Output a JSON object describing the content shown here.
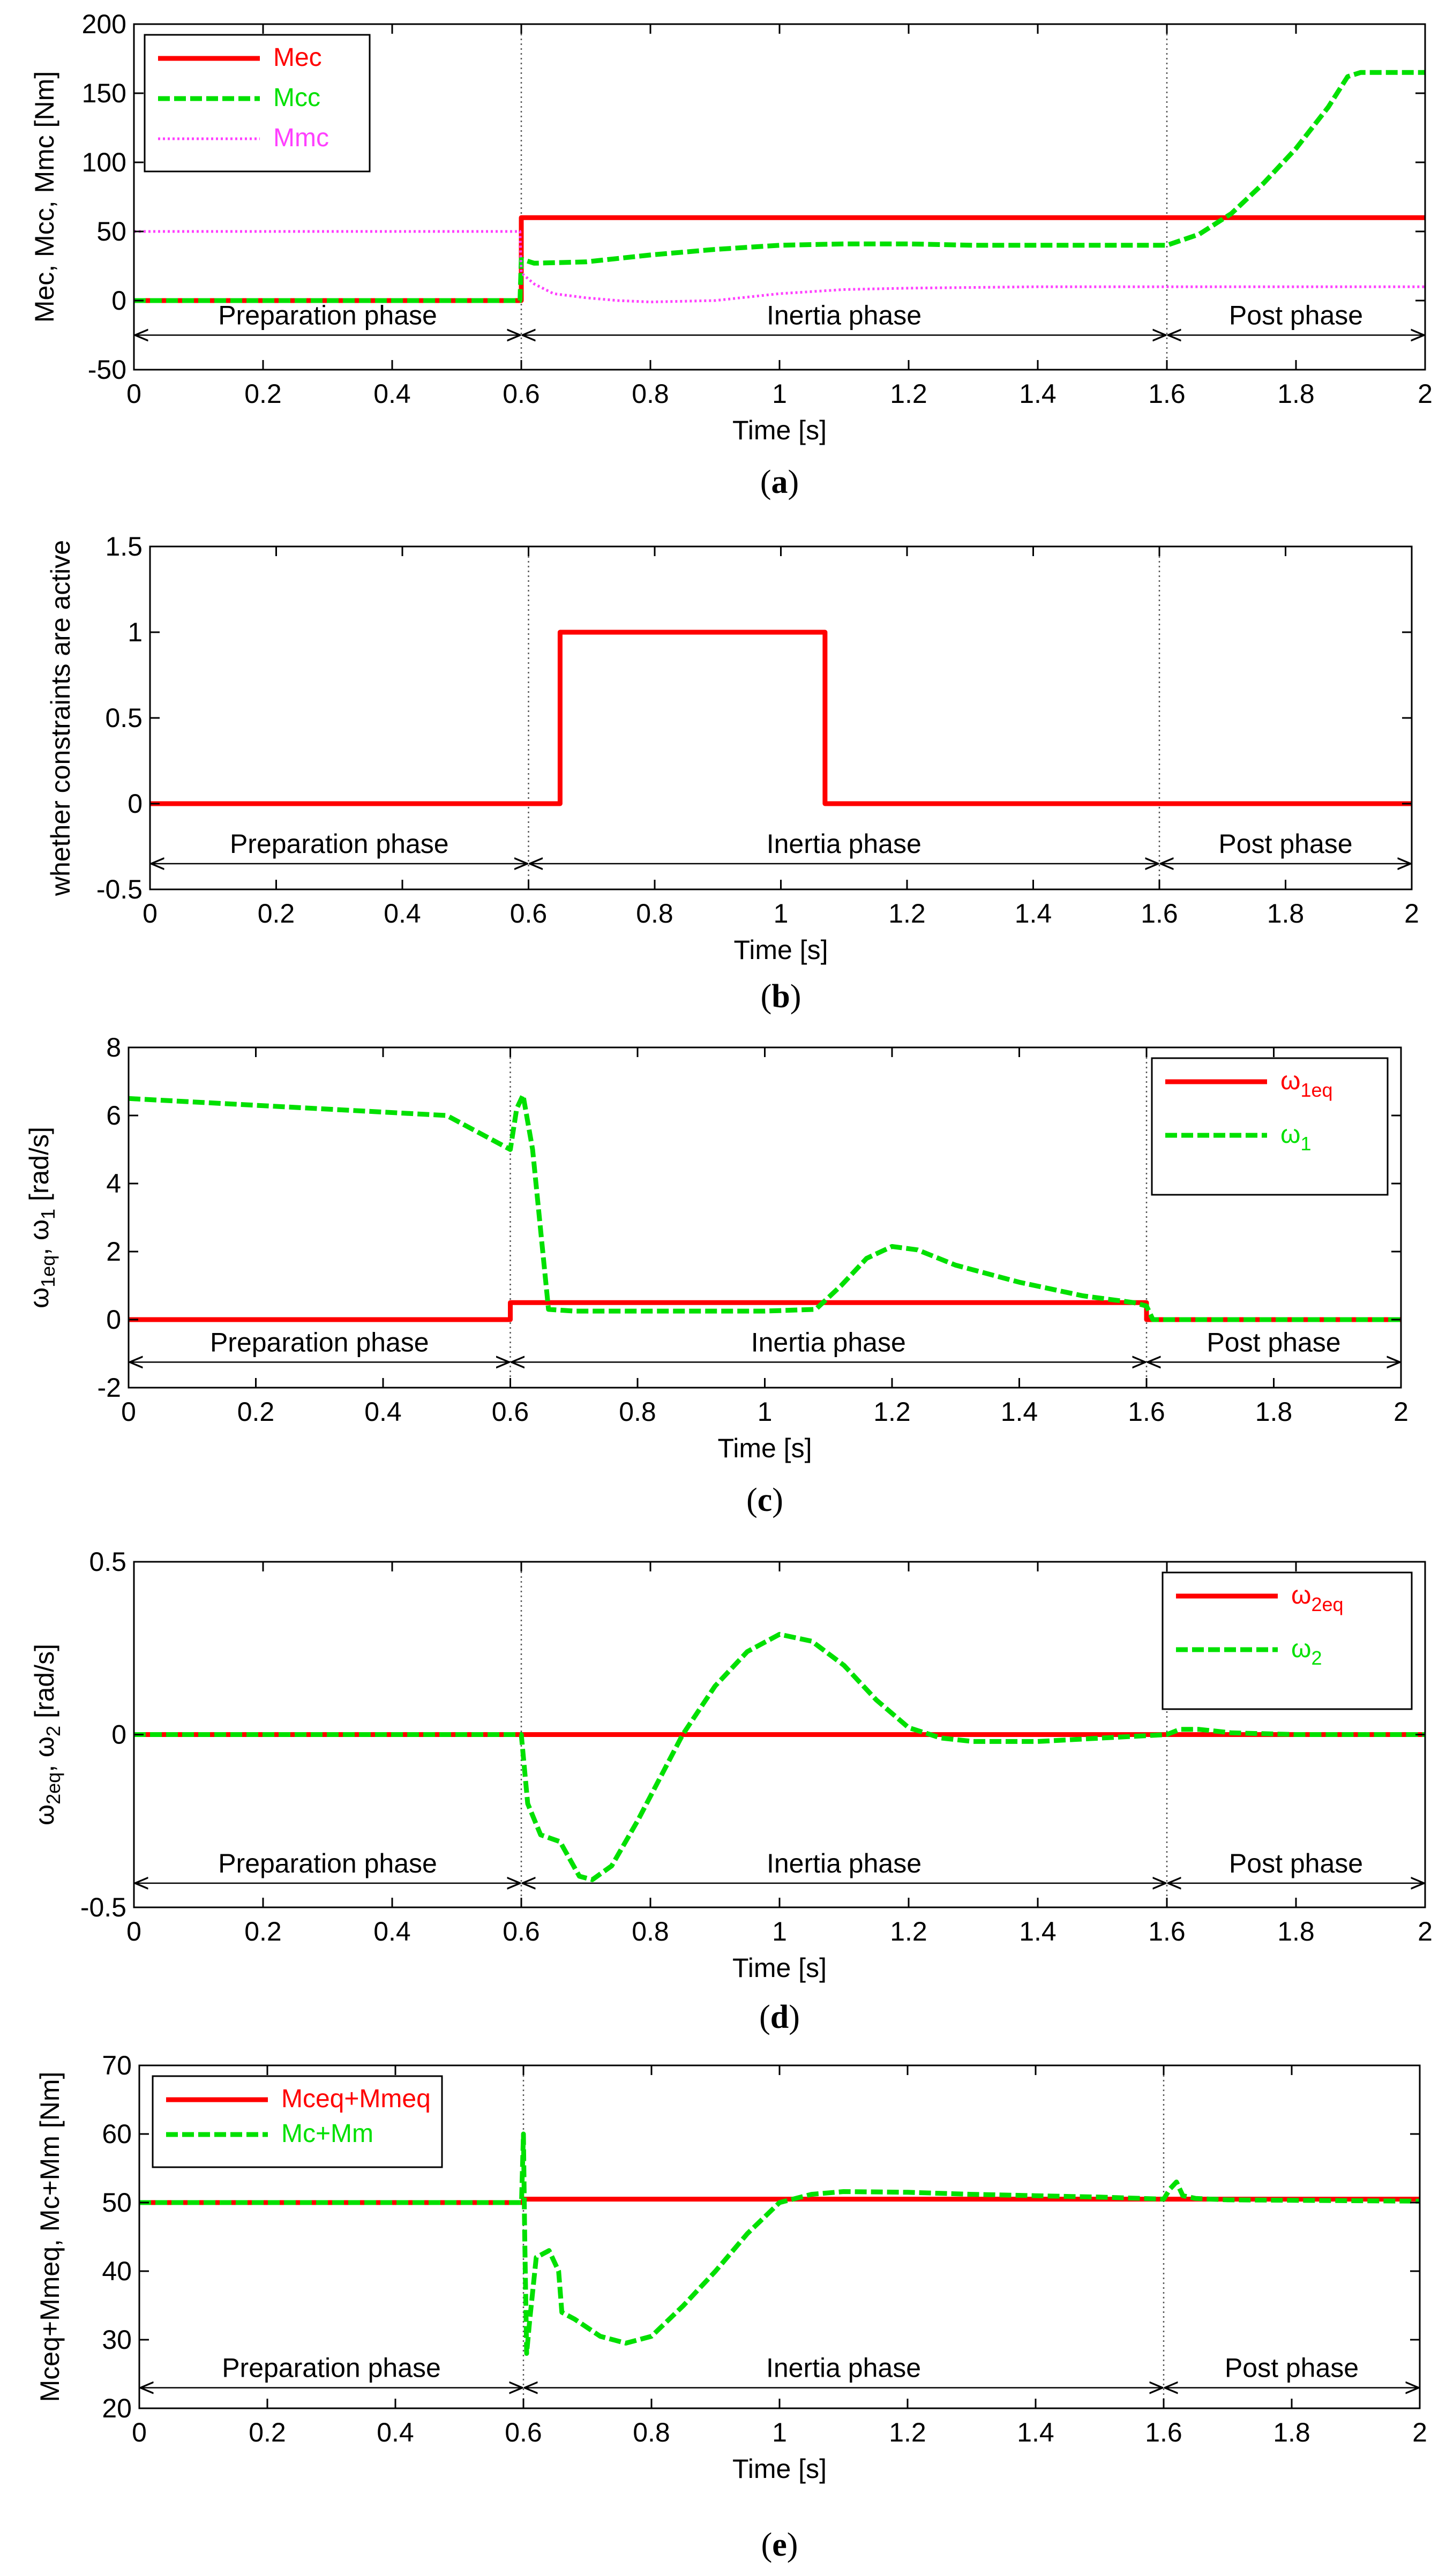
{
  "colors": {
    "red": "#ff0000",
    "green": "#00e000",
    "magenta": "#ff40ff",
    "axis": "#000000",
    "divider": "#555555"
  },
  "chart_data": [
    {
      "id": "a",
      "type": "line",
      "caption": "a",
      "xlabel": "Time [s]",
      "ylabel": "Mec, Mcc, Mmc [Nm]",
      "xlim": [
        0,
        2
      ],
      "ylim": [
        -50,
        200
      ],
      "xticks": [
        0,
        0.2,
        0.4,
        0.6,
        0.8,
        1,
        1.2,
        1.4,
        1.6,
        1.8,
        2
      ],
      "xtick_labels": [
        "0",
        "0.2",
        "0.4",
        "0.6",
        "0.8",
        "1",
        "1.2",
        "1.4",
        "1.6",
        "1.8",
        "2"
      ],
      "yticks": [
        -50,
        0,
        50,
        100,
        150,
        200
      ],
      "ytick_labels": [
        "-50",
        "0",
        "50",
        "100",
        "150",
        "200"
      ],
      "phase_y": -25,
      "phases": [
        {
          "label": "Preparation phase",
          "from": 0,
          "to": 0.6
        },
        {
          "label": "Inertia phase",
          "from": 0.6,
          "to": 1.6
        },
        {
          "label": "Post phase",
          "from": 1.6,
          "to": 2
        }
      ],
      "legend": {
        "position": "top-left"
      },
      "series": [
        {
          "name": "Mec",
          "legend_label": "Mec",
          "color": "red",
          "style": "solid",
          "x": [
            0,
            0.6,
            0.6,
            2
          ],
          "y": [
            0,
            0,
            60,
            60
          ]
        },
        {
          "name": "Mcc",
          "legend_label": "Mcc",
          "color": "green",
          "style": "dashed",
          "x": [
            0,
            0.598,
            0.6,
            0.62,
            0.7,
            0.8,
            0.9,
            1.0,
            1.1,
            1.2,
            1.3,
            1.4,
            1.5,
            1.6,
            1.65,
            1.7,
            1.75,
            1.8,
            1.85,
            1.88,
            1.9,
            2.0
          ],
          "y": [
            0,
            0,
            30,
            27,
            28,
            33,
            37,
            40,
            41,
            41,
            40,
            40,
            40,
            40,
            48,
            63,
            85,
            110,
            140,
            162,
            165,
            165
          ]
        },
        {
          "name": "Mmc",
          "legend_label": "Mmc",
          "color": "magenta",
          "style": "dotted",
          "x": [
            0,
            0.598,
            0.6,
            0.62,
            0.65,
            0.7,
            0.75,
            0.8,
            0.9,
            1.0,
            1.1,
            1.2,
            1.4,
            1.6,
            2.0
          ],
          "y": [
            50,
            50,
            20,
            12,
            5,
            2,
            0,
            -1,
            0,
            5,
            8,
            9,
            10,
            10,
            10
          ]
        }
      ]
    },
    {
      "id": "b",
      "type": "line",
      "caption": "b",
      "xlabel": "Time [s]",
      "ylabel": "whether constraints are active",
      "xlim": [
        0,
        2
      ],
      "ylim": [
        -0.5,
        1.5
      ],
      "xticks": [
        0,
        0.2,
        0.4,
        0.6,
        0.8,
        1,
        1.2,
        1.4,
        1.6,
        1.8,
        2
      ],
      "xtick_labels": [
        "0",
        "0.2",
        "0.4",
        "0.6",
        "0.8",
        "1",
        "1.2",
        "1.4",
        "1.6",
        "1.8",
        "2"
      ],
      "yticks": [
        -0.5,
        0,
        0.5,
        1,
        1.5
      ],
      "ytick_labels": [
        "-0.5",
        "0",
        "0.5",
        "1",
        "1.5"
      ],
      "phase_y": -0.35,
      "phases": [
        {
          "label": "Preparation phase",
          "from": 0,
          "to": 0.6
        },
        {
          "label": "Inertia phase",
          "from": 0.6,
          "to": 1.6
        },
        {
          "label": "Post phase",
          "from": 1.6,
          "to": 2
        }
      ],
      "legend": null,
      "series": [
        {
          "name": "active",
          "color": "red",
          "style": "solid",
          "x": [
            0,
            0.65,
            0.65,
            1.07,
            1.07,
            2
          ],
          "y": [
            0,
            0,
            1,
            1,
            0,
            0
          ]
        }
      ]
    },
    {
      "id": "c",
      "type": "line",
      "caption": "c",
      "xlabel": "Time [s]",
      "ylabel": "ω1eq, ω1 [rad/s]",
      "xlim": [
        0,
        2
      ],
      "ylim": [
        -2,
        8
      ],
      "xticks": [
        0,
        0.2,
        0.4,
        0.6,
        0.8,
        1,
        1.2,
        1.4,
        1.6,
        1.8,
        2
      ],
      "xtick_labels": [
        "0",
        "0.2",
        "0.4",
        "0.6",
        "0.8",
        "1",
        "1.2",
        "1.4",
        "1.6",
        "1.8",
        "2"
      ],
      "yticks": [
        -2,
        0,
        2,
        4,
        6,
        8
      ],
      "ytick_labels": [
        "-2",
        "0",
        "2",
        "4",
        "6",
        "8"
      ],
      "phase_y": -1.25,
      "phases": [
        {
          "label": "Preparation phase",
          "from": 0,
          "to": 0.6
        },
        {
          "label": "Inertia phase",
          "from": 0.6,
          "to": 1.6
        },
        {
          "label": "Post phase",
          "from": 1.6,
          "to": 2
        }
      ],
      "legend": {
        "position": "top-right"
      },
      "series": [
        {
          "name": "ω1eq",
          "legend_base": "ω",
          "legend_sub": "1eq",
          "color": "red",
          "style": "solid",
          "x": [
            0,
            0.6,
            0.6,
            1.6,
            1.6,
            2
          ],
          "y": [
            0,
            0,
            0.5,
            0.5,
            0,
            0
          ]
        },
        {
          "name": "ω1",
          "legend_base": "ω",
          "legend_sub": "1",
          "color": "green",
          "style": "dashed",
          "x": [
            0,
            0.5,
            0.6,
            0.61,
            0.62,
            0.635,
            0.66,
            0.7,
            0.8,
            0.9,
            1.0,
            1.08,
            1.12,
            1.16,
            1.2,
            1.24,
            1.3,
            1.4,
            1.5,
            1.58,
            1.6,
            1.61,
            1.65,
            2.0
          ],
          "y": [
            6.5,
            6.0,
            5.0,
            6.2,
            6.6,
            5.0,
            0.3,
            0.25,
            0.25,
            0.25,
            0.25,
            0.3,
            1.0,
            1.8,
            2.15,
            2.05,
            1.6,
            1.1,
            0.7,
            0.5,
            0.4,
            0.0,
            0.0,
            0.0
          ]
        }
      ]
    },
    {
      "id": "d",
      "type": "line",
      "caption": "d",
      "xlabel": "Time [s]",
      "ylabel": "ω2eq, ω2 [rad/s]",
      "xlim": [
        0,
        2
      ],
      "ylim": [
        -0.5,
        0.5
      ],
      "xticks": [
        0,
        0.2,
        0.4,
        0.6,
        0.8,
        1,
        1.2,
        1.4,
        1.6,
        1.8,
        2
      ],
      "xtick_labels": [
        "0",
        "0.2",
        "0.4",
        "0.6",
        "0.8",
        "1",
        "1.2",
        "1.4",
        "1.6",
        "1.8",
        "2"
      ],
      "yticks": [
        -0.5,
        0,
        0.5
      ],
      "ytick_labels": [
        "-0.5",
        "0",
        "0.5"
      ],
      "phase_y": -0.43,
      "phases": [
        {
          "label": "Preparation phase",
          "from": 0,
          "to": 0.6
        },
        {
          "label": "Inertia phase",
          "from": 0.6,
          "to": 1.6
        },
        {
          "label": "Post phase",
          "from": 1.6,
          "to": 2
        }
      ],
      "legend": {
        "position": "top-right"
      },
      "series": [
        {
          "name": "ω2eq",
          "legend_base": "ω",
          "legend_sub": "2eq",
          "color": "red",
          "style": "solid",
          "x": [
            0,
            2
          ],
          "y": [
            0,
            0
          ]
        },
        {
          "name": "ω2",
          "legend_base": "ω",
          "legend_sub": "2",
          "color": "green",
          "style": "dashed",
          "x": [
            0,
            0.6,
            0.61,
            0.63,
            0.66,
            0.69,
            0.71,
            0.74,
            0.78,
            0.85,
            0.9,
            0.95,
            1.0,
            1.05,
            1.1,
            1.15,
            1.2,
            1.25,
            1.3,
            1.4,
            1.5,
            1.6,
            1.62,
            1.65,
            1.7,
            1.8,
            2.0
          ],
          "y": [
            0,
            0,
            -0.2,
            -0.29,
            -0.31,
            -0.41,
            -0.42,
            -0.38,
            -0.25,
            0.0,
            0.14,
            0.24,
            0.29,
            0.27,
            0.2,
            0.1,
            0.02,
            -0.01,
            -0.02,
            -0.02,
            -0.01,
            0.0,
            0.015,
            0.015,
            0.005,
            0.0,
            0.0
          ]
        }
      ]
    },
    {
      "id": "e",
      "type": "line",
      "caption": "e",
      "xlabel": "Time [s]",
      "ylabel": "Mceq+Mmeq, Mc+Mm [Nm]",
      "xlim": [
        0,
        2
      ],
      "ylim": [
        20,
        70
      ],
      "xticks": [
        0,
        0.2,
        0.4,
        0.6,
        0.8,
        1,
        1.2,
        1.4,
        1.6,
        1.8,
        2
      ],
      "xtick_labels": [
        "0",
        "0.2",
        "0.4",
        "0.6",
        "0.8",
        "1",
        "1.2",
        "1.4",
        "1.6",
        "1.8",
        "2"
      ],
      "yticks": [
        20,
        30,
        40,
        50,
        60,
        70
      ],
      "ytick_labels": [
        "20",
        "30",
        "40",
        "50",
        "60",
        "70"
      ],
      "phase_y": 23,
      "phases": [
        {
          "label": "Preparation phase",
          "from": 0,
          "to": 0.6
        },
        {
          "label": "Inertia phase",
          "from": 0.6,
          "to": 1.6
        },
        {
          "label": "Post phase",
          "from": 1.6,
          "to": 2
        }
      ],
      "legend": {
        "position": "top-left"
      },
      "series": [
        {
          "name": "Mceq+Mmeq",
          "legend_label": "Mceq+Mmeq",
          "color": "red",
          "style": "solid",
          "x": [
            0,
            0.6,
            0.6,
            2
          ],
          "y": [
            50,
            50,
            50.5,
            50.5
          ]
        },
        {
          "name": "Mc+Mm",
          "legend_label": "Mc+Mm",
          "color": "green",
          "style": "dashed",
          "x": [
            0,
            0.597,
            0.6,
            0.602,
            0.605,
            0.61,
            0.62,
            0.64,
            0.655,
            0.66,
            0.68,
            0.72,
            0.76,
            0.8,
            0.85,
            0.9,
            0.95,
            1.0,
            1.05,
            1.1,
            1.2,
            1.3,
            1.4,
            1.5,
            1.6,
            1.61,
            1.62,
            1.63,
            1.65,
            1.7,
            2.0
          ],
          "y": [
            50,
            50,
            60,
            45,
            28,
            33,
            42,
            43,
            40,
            34,
            33,
            30.5,
            29.5,
            30.5,
            35,
            40,
            45.5,
            50,
            51.2,
            51.6,
            51.5,
            51.2,
            51,
            50.8,
            50.5,
            52,
            53,
            51,
            50.6,
            50.4,
            50.2
          ]
        }
      ]
    }
  ]
}
